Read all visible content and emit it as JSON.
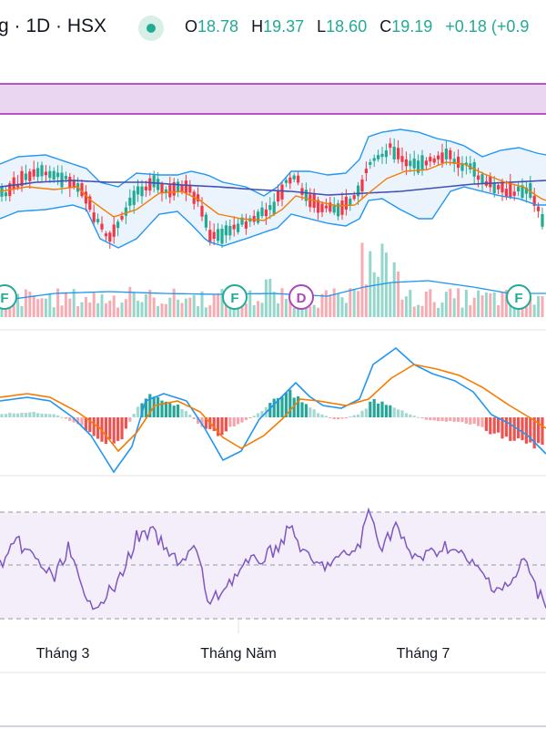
{
  "header": {
    "title": "g · 1D · HSX",
    "ohlc": [
      {
        "label": "O",
        "value": "18.78"
      },
      {
        "label": "H",
        "value": "19.37"
      },
      {
        "label": "L",
        "value": "18.60"
      },
      {
        "label": "C",
        "value": "19.19"
      }
    ],
    "change": "+0.18 (+0.9"
  },
  "colors": {
    "up": "#22ab94",
    "down": "#f23645",
    "bb": "#2196f3",
    "ma_slow": "#3f51b5",
    "ma_fast": "#f57c00",
    "rsi": "#7e57c2",
    "zone": "#e1bee7",
    "zone_border": "#9c27b0"
  },
  "chart_data": {
    "type": "candlestick",
    "x_axis_labels": [
      "Tháng 3",
      "Tháng Năm",
      "Tháng 7"
    ],
    "markers": [
      "F",
      "F",
      "D",
      "F"
    ],
    "panes": [
      "price",
      "volume",
      "macd",
      "rsi"
    ]
  }
}
